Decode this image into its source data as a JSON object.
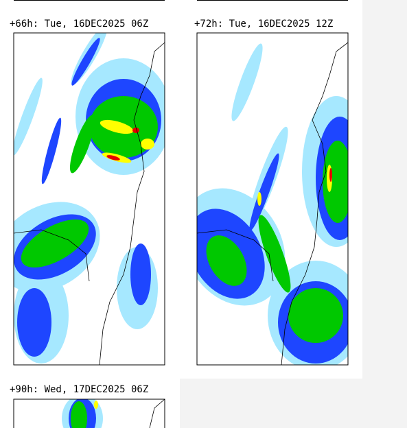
{
  "panels": [
    {
      "title": "+66h: Tue, 16DEC2025 06Z"
    },
    {
      "title": "+72h: Tue, 16DEC2025 12Z"
    },
    {
      "title": "+90h: Wed, 17DEC2025 06Z"
    }
  ]
}
